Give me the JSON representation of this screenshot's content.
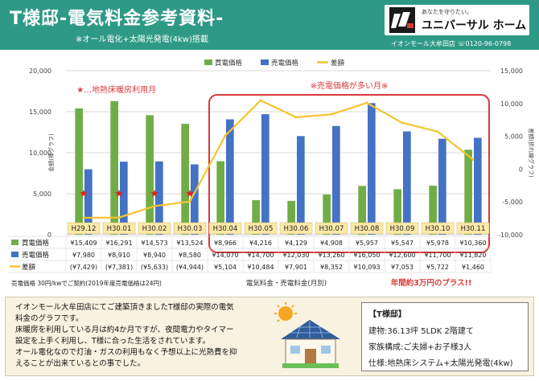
{
  "header": {
    "title": "T様邸-電気料金参考資料-",
    "subtitle": "※オール電化+太陽光発電(4kw)搭載",
    "logo_tagline": "あなたを守りたい。",
    "logo_name": "ユニバーサル ホーム",
    "contact": "イオンモール大牟田店 ☏0120-96-0798"
  },
  "colors": {
    "header_bg": "#2e9a86",
    "buy": "#70ad47",
    "sell": "#4472c4",
    "diff": "#f4c430",
    "highlight": "#d93a3a",
    "label_box": "#fde9a8"
  },
  "chart_data": {
    "type": "bar",
    "categories": [
      "H29.12",
      "H30.01",
      "H30.02",
      "H30.03",
      "H30.04",
      "H30.05",
      "H30.06",
      "H30.07",
      "H30.08",
      "H30.09",
      "H30.10",
      "H30.11"
    ],
    "series": [
      {
        "name": "買電価格",
        "type": "bar",
        "axis": "left",
        "values": [
          15409,
          16291,
          14573,
          13524,
          8966,
          4216,
          4129,
          4908,
          5957,
          5547,
          5978,
          10360
        ]
      },
      {
        "name": "売電価格",
        "type": "bar",
        "axis": "left",
        "values": [
          7980,
          8910,
          8940,
          8580,
          14070,
          14700,
          12030,
          13260,
          16050,
          12600,
          11700,
          11820
        ]
      },
      {
        "name": "差額",
        "type": "line",
        "axis": "right",
        "values": [
          -7429,
          -7381,
          -5633,
          -4944,
          5104,
          10484,
          7901,
          8352,
          10093,
          7053,
          5722,
          1460
        ]
      }
    ],
    "table": {
      "buy_row": [
        "¥15,409",
        "¥16,291",
        "¥14,573",
        "¥13,524",
        "¥8,966",
        "¥4,216",
        "¥4,129",
        "¥4,908",
        "¥5,957",
        "¥5,547",
        "¥5,978",
        "¥10,360"
      ],
      "sell_row": [
        "¥7,980",
        "¥8,910",
        "¥8,940",
        "¥8,580",
        "¥14,070",
        "¥14,700",
        "¥12,030",
        "¥13,260",
        "¥16,050",
        "¥12,600",
        "¥11,700",
        "¥11,820"
      ],
      "diff_row": [
        "(¥7,429)",
        "(¥7,381)",
        "(¥5,633)",
        "(¥4,944)",
        "¥5,104",
        "¥10,484",
        "¥7,901",
        "¥8,352",
        "¥10,093",
        "¥7,053",
        "¥5,722",
        "¥1,460"
      ]
    },
    "left_axis": {
      "label": "金額(棒グラフ)",
      "min": 0,
      "max": 20000,
      "ticks": [
        "0",
        "5,000",
        "10,000",
        "15,000",
        "20,000"
      ]
    },
    "right_axis": {
      "label": "差額(折れ線グラフ)",
      "min": -10000,
      "max": 15000,
      "ticks": [
        "-10,000",
        "-5,000",
        "0",
        "5,000",
        "10,000",
        "15,000"
      ]
    },
    "xlabel": "電気料金・売電料金(月別)",
    "legend": {
      "placement": "top",
      "items": [
        "買電価格",
        "売電価格",
        "差額"
      ]
    },
    "annotations": {
      "floor_heating": "★…地熱床暖房利用月",
      "floor_heating_months": [
        "H29.12",
        "H30.01",
        "H30.02",
        "H30.03"
      ],
      "high_sell": "※売電価格が多い月※",
      "high_sell_months": [
        "H30.04",
        "H30.05",
        "H30.06",
        "H30.07",
        "H30.08",
        "H30.09",
        "H30.10",
        "H30.11"
      ],
      "contract_note": "売電価格 30円/kwでご契約(2019年度売電価格は24円)",
      "annual_plus": "年間約3万円のプラス!!"
    },
    "grid": true
  },
  "description": [
    "イオンモール大牟田店にてご建築頂きましたT様邸の実際の電気",
    "料金のグラフです。",
    "床暖房を利用している月は約4か月ですが、夜間電力やタイマー",
    "設定を上手く利用し、T様に合った生活をされています。",
    "オール電化なので灯油・ガスの利用もなく予想以上に光熱費を抑",
    "えることが出来ているとの事でした。"
  ],
  "info": {
    "title": "【T様邸】",
    "building": "建物:36.13坪 5LDK 2階建て",
    "family": "家族構成:ご夫婦+お子様3人",
    "spec": "仕様:地熱床システム+太陽光発電(4kw)"
  }
}
